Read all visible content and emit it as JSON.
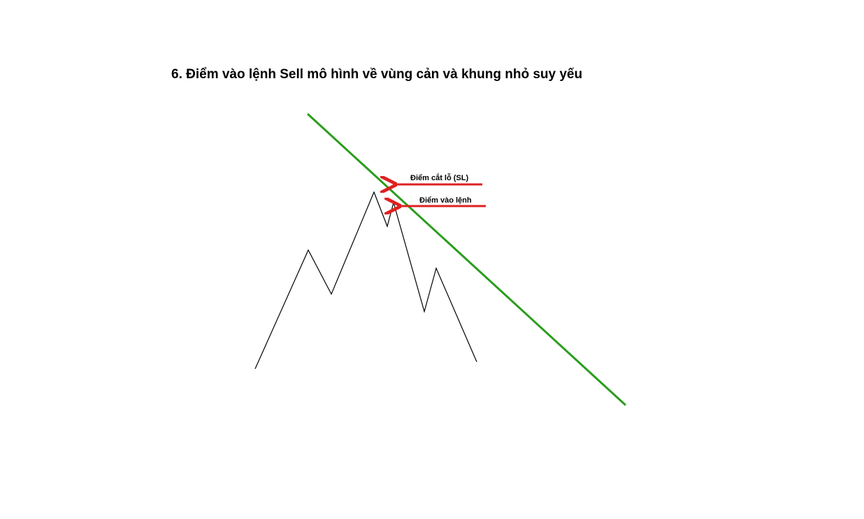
{
  "title": "6. Điểm vào lệnh Sell mô hình về vùng cản và khung nhỏ suy yếu",
  "annotations": {
    "stop_loss": "Điểm cắt lỗ (SL)",
    "entry": "Điểm vào lệnh"
  },
  "colors": {
    "trendline": "#2a9d1c",
    "arrow": "#e02020",
    "price_path": "#000000"
  }
}
